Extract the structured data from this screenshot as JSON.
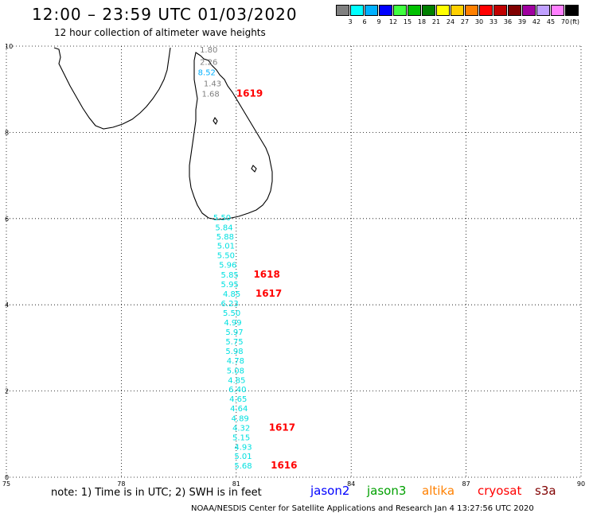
{
  "header": {
    "title": "12:00 – 23:59 UTC 01/03/2020",
    "subtitle": "12 hour collection of altimeter wave heights"
  },
  "legend": {
    "unit": "(ft)",
    "items": [
      {
        "label": "3",
        "color": "#808080"
      },
      {
        "label": "6",
        "color": "#00ffff"
      },
      {
        "label": "9",
        "color": "#00b0ff"
      },
      {
        "label": "12",
        "color": "#0000ff"
      },
      {
        "label": "15",
        "color": "#40ff40"
      },
      {
        "label": "18",
        "color": "#00c000"
      },
      {
        "label": "21",
        "color": "#008000"
      },
      {
        "label": "24",
        "color": "#ffff00"
      },
      {
        "label": "27",
        "color": "#ffd000"
      },
      {
        "label": "30",
        "color": "#ff8000"
      },
      {
        "label": "33",
        "color": "#ff0000"
      },
      {
        "label": "36",
        "color": "#c00000"
      },
      {
        "label": "39",
        "color": "#800000"
      },
      {
        "label": "42",
        "color": "#a000a0"
      },
      {
        "label": "45",
        "color": "#c0a0ff"
      },
      {
        "label": "70",
        "color": "#ff80ff"
      },
      {
        "label": "",
        "color": "#000000"
      }
    ]
  },
  "map": {
    "lon_range": [
      75,
      90
    ],
    "lat_range": [
      0,
      10
    ],
    "lon_ticks": [
      "75",
      "78",
      "81",
      "84",
      "87",
      "90"
    ],
    "lat_ticks": [
      "0",
      "2",
      "4",
      "6",
      "8",
      "10"
    ],
    "grid": true
  },
  "observations": [
    {
      "value": "1.80",
      "lon": 80.05,
      "lat": 9.85,
      "color": "#808080"
    },
    {
      "value": "2.26",
      "lon": 80.05,
      "lat": 9.57,
      "color": "#808080"
    },
    {
      "value": "8.52",
      "lon": 80.0,
      "lat": 9.33,
      "color": "#00b0ff"
    },
    {
      "value": "1.43",
      "lon": 80.15,
      "lat": 9.07,
      "color": "#808080"
    },
    {
      "value": "1.68",
      "lon": 80.1,
      "lat": 8.83,
      "color": "#808080"
    },
    {
      "value": "5.50",
      "lon": 80.4,
      "lat": 5.96,
      "color": "#00e0e0"
    },
    {
      "value": "5.84",
      "lon": 80.45,
      "lat": 5.73,
      "color": "#00e0e0"
    },
    {
      "value": "5.88",
      "lon": 80.48,
      "lat": 5.52,
      "color": "#00e0e0"
    },
    {
      "value": "5.01",
      "lon": 80.5,
      "lat": 5.3,
      "color": "#00e0e0"
    },
    {
      "value": "5.50",
      "lon": 80.5,
      "lat": 5.08,
      "color": "#00e0e0"
    },
    {
      "value": "5.96",
      "lon": 80.55,
      "lat": 4.86,
      "color": "#00e0e0"
    },
    {
      "value": "5.85",
      "lon": 80.6,
      "lat": 4.63,
      "color": "#00e0e0"
    },
    {
      "value": "5.95",
      "lon": 80.6,
      "lat": 4.41,
      "color": "#00e0e0"
    },
    {
      "value": "4.85",
      "lon": 80.65,
      "lat": 4.19,
      "color": "#00e0e0"
    },
    {
      "value": "6.23",
      "lon": 80.6,
      "lat": 3.97,
      "color": "#00e0e0"
    },
    {
      "value": "5.50",
      "lon": 80.65,
      "lat": 3.75,
      "color": "#00e0e0"
    },
    {
      "value": "4.99",
      "lon": 80.68,
      "lat": 3.52,
      "color": "#00e0e0"
    },
    {
      "value": "5.97",
      "lon": 80.72,
      "lat": 3.3,
      "color": "#00e0e0"
    },
    {
      "value": "5.75",
      "lon": 80.72,
      "lat": 3.08,
      "color": "#00e0e0"
    },
    {
      "value": "5.98",
      "lon": 80.72,
      "lat": 2.86,
      "color": "#00e0e0"
    },
    {
      "value": "4.78",
      "lon": 80.75,
      "lat": 2.64,
      "color": "#00e0e0"
    },
    {
      "value": "5.08",
      "lon": 80.75,
      "lat": 2.41,
      "color": "#00e0e0"
    },
    {
      "value": "4.85",
      "lon": 80.78,
      "lat": 2.19,
      "color": "#00e0e0"
    },
    {
      "value": "6.40",
      "lon": 80.8,
      "lat": 1.97,
      "color": "#00e0e0"
    },
    {
      "value": "4.65",
      "lon": 80.82,
      "lat": 1.75,
      "color": "#00e0e0"
    },
    {
      "value": "4.64",
      "lon": 80.84,
      "lat": 1.53,
      "color": "#00e0e0"
    },
    {
      "value": "4.89",
      "lon": 80.87,
      "lat": 1.3,
      "color": "#00e0e0"
    },
    {
      "value": "4.32",
      "lon": 80.9,
      "lat": 1.08,
      "color": "#00e0e0"
    },
    {
      "value": "5.15",
      "lon": 80.9,
      "lat": 0.86,
      "color": "#00e0e0"
    },
    {
      "value": "4.93",
      "lon": 80.95,
      "lat": 0.64,
      "color": "#00e0e0"
    },
    {
      "value": "5.01",
      "lon": 80.95,
      "lat": 0.42,
      "color": "#00e0e0"
    },
    {
      "value": "5.68",
      "lon": 80.95,
      "lat": 0.2,
      "color": "#00e0e0"
    }
  ],
  "passes": [
    {
      "time": "1619",
      "lon": 81.0,
      "lat": 8.83
    },
    {
      "time": "1618",
      "lon": 81.45,
      "lat": 4.63
    },
    {
      "time": "1617",
      "lon": 81.5,
      "lat": 4.19
    },
    {
      "time": "1617",
      "lon": 81.85,
      "lat": 1.08
    },
    {
      "time": "1616",
      "lon": 81.9,
      "lat": 0.2
    }
  ],
  "footer": {
    "note": "note:  1) Time is in UTC; 2) SWH is in feet",
    "satellites": [
      {
        "name": "jason2",
        "color": "#0000ff"
      },
      {
        "name": "jason3",
        "color": "#00a000"
      },
      {
        "name": "altika",
        "color": "#ff8000"
      },
      {
        "name": "cryosat",
        "color": "#ff0000"
      },
      {
        "name": "s3a",
        "color": "#800000"
      }
    ],
    "credit": "NOAA/NESDIS Center for Satellite Applications and Research    Jan  4 13:27:56 UTC 2020"
  }
}
